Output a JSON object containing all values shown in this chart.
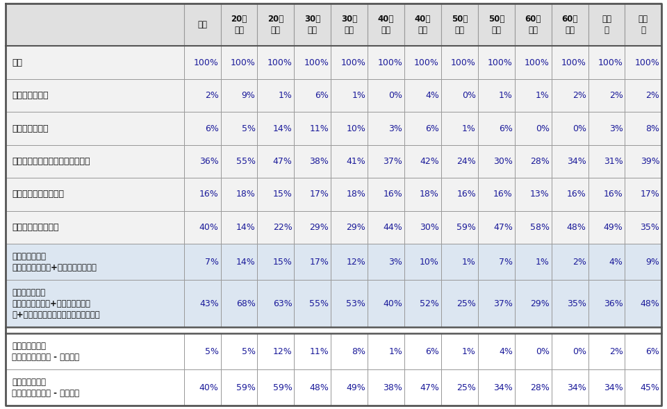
{
  "col_headers_line1": [
    "全体",
    "20代",
    "20代",
    "30代",
    "30代",
    "40代",
    "40代",
    "50代",
    "50代",
    "60代",
    "60代",
    "男性",
    "女性"
  ],
  "col_headers_line2": [
    "",
    "男性",
    "女性",
    "男性",
    "女性",
    "男性",
    "女性",
    "男性",
    "女性",
    "男性",
    "女性",
    "計",
    "計"
  ],
  "rows": [
    {
      "label": "全体",
      "label2": "",
      "values": [
        "100%",
        "100%",
        "100%",
        "100%",
        "100%",
        "100%",
        "100%",
        "100%",
        "100%",
        "100%",
        "100%",
        "100%",
        "100%"
      ],
      "style": "normal"
    },
    {
      "label": "ぜひ利用したい",
      "label2": "",
      "values": [
        "2%",
        "9%",
        "1%",
        "6%",
        "1%",
        "0%",
        "4%",
        "0%",
        "1%",
        "1%",
        "2%",
        "2%",
        "2%"
      ],
      "style": "normal"
    },
    {
      "label": "まあ利用したい",
      "label2": "",
      "values": [
        "6%",
        "5%",
        "14%",
        "11%",
        "10%",
        "3%",
        "6%",
        "1%",
        "6%",
        "0%",
        "0%",
        "3%",
        "8%"
      ],
      "style": "normal"
    },
    {
      "label": "どちらともいえない・わからない",
      "label2": "",
      "values": [
        "36%",
        "55%",
        "47%",
        "38%",
        "41%",
        "37%",
        "42%",
        "24%",
        "30%",
        "28%",
        "34%",
        "31%",
        "39%"
      ],
      "style": "normal"
    },
    {
      "label": "あまり利用したくない",
      "label2": "",
      "values": [
        "16%",
        "18%",
        "15%",
        "17%",
        "18%",
        "16%",
        "18%",
        "16%",
        "16%",
        "13%",
        "16%",
        "16%",
        "17%"
      ],
      "style": "normal"
    },
    {
      "label": "全く利用したくない",
      "label2": "",
      "values": [
        "40%",
        "14%",
        "22%",
        "29%",
        "29%",
        "44%",
        "30%",
        "59%",
        "47%",
        "58%",
        "48%",
        "49%",
        "35%"
      ],
      "style": "normal"
    },
    {
      "label": "積極的利用意向",
      "label2": "（ぜひ利用したい+まあ利用したい）",
      "values": [
        "7%",
        "14%",
        "15%",
        "17%",
        "12%",
        "3%",
        "10%",
        "1%",
        "7%",
        "1%",
        "2%",
        "4%",
        "9%"
      ],
      "style": "summary"
    },
    {
      "label": "消極的利用意向",
      "label2": "（ぜひ利用したい+まあ利用したい\n　+どちらともいえない・わからない）",
      "values": [
        "43%",
        "68%",
        "63%",
        "55%",
        "53%",
        "40%",
        "52%",
        "25%",
        "37%",
        "29%",
        "35%",
        "36%",
        "48%"
      ],
      "style": "summary"
    },
    {
      "label": "積極的潜在需要",
      "label2": "（積極的利用意向 - 利用率）",
      "values": [
        "5%",
        "5%",
        "12%",
        "11%",
        "8%",
        "1%",
        "6%",
        "1%",
        "4%",
        "0%",
        "0%",
        "2%",
        "6%"
      ],
      "style": "latent"
    },
    {
      "label": "消極的潜在需要",
      "label2": "（消極的利用意向 - 利用率）",
      "values": [
        "40%",
        "59%",
        "59%",
        "48%",
        "49%",
        "38%",
        "47%",
        "25%",
        "34%",
        "28%",
        "34%",
        "34%",
        "45%"
      ],
      "style": "latent"
    }
  ],
  "bg_header": "#e0e0e0",
  "bg_normal": "#f2f2f2",
  "bg_summary": "#dce6f1",
  "bg_latent": "#ffffff",
  "border_color": "#999999",
  "border_color_thick": "#555555",
  "text_color_label": "#111111",
  "text_color_value": "#1a1a9a",
  "figsize": [
    9.6,
    5.89
  ],
  "dpi": 100
}
